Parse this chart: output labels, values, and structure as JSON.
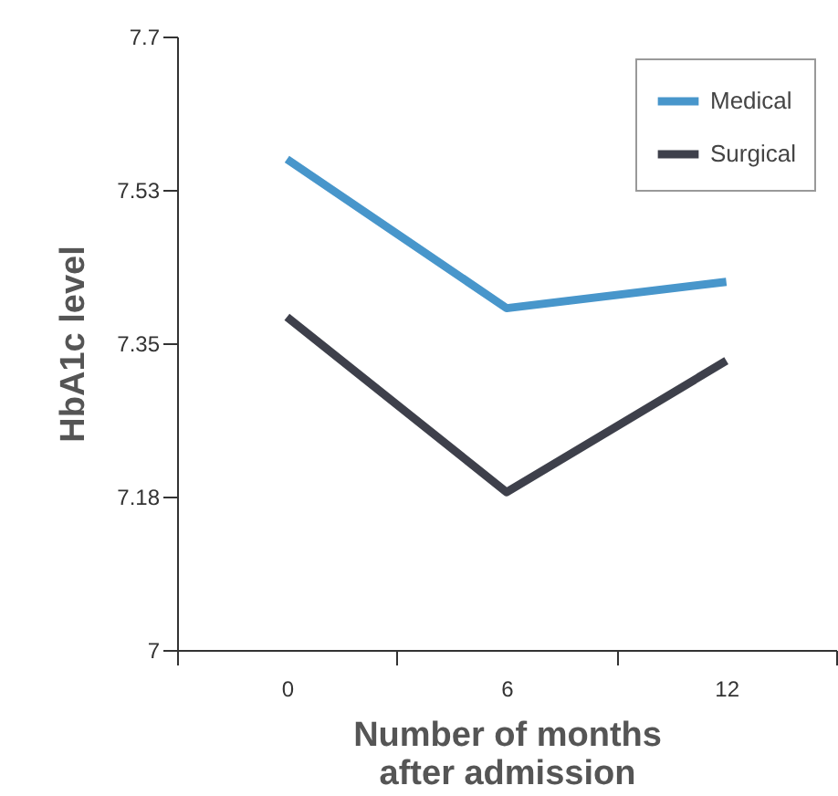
{
  "chart_data": {
    "type": "line",
    "xlabel": "Number of months\nafter admission",
    "ylabel": "HbA1c level",
    "categories": [
      "0",
      "6",
      "12"
    ],
    "series": [
      {
        "name": "Medical",
        "color": "#4896cb",
        "values": [
          7.56,
          7.39,
          7.42
        ]
      },
      {
        "name": "Surgical",
        "color": "#3e404b",
        "values": [
          7.38,
          7.18,
          7.33
        ]
      }
    ],
    "ylim": [
      7,
      7.7
    ],
    "yticks": [
      7,
      {
        "value": 7.175,
        "label": "7.18"
      },
      7.35,
      {
        "value": 7.525,
        "label": "7.53"
      },
      7.7
    ],
    "grid": false,
    "legend": "top right",
    "marker": "none",
    "line_style": "solid"
  }
}
